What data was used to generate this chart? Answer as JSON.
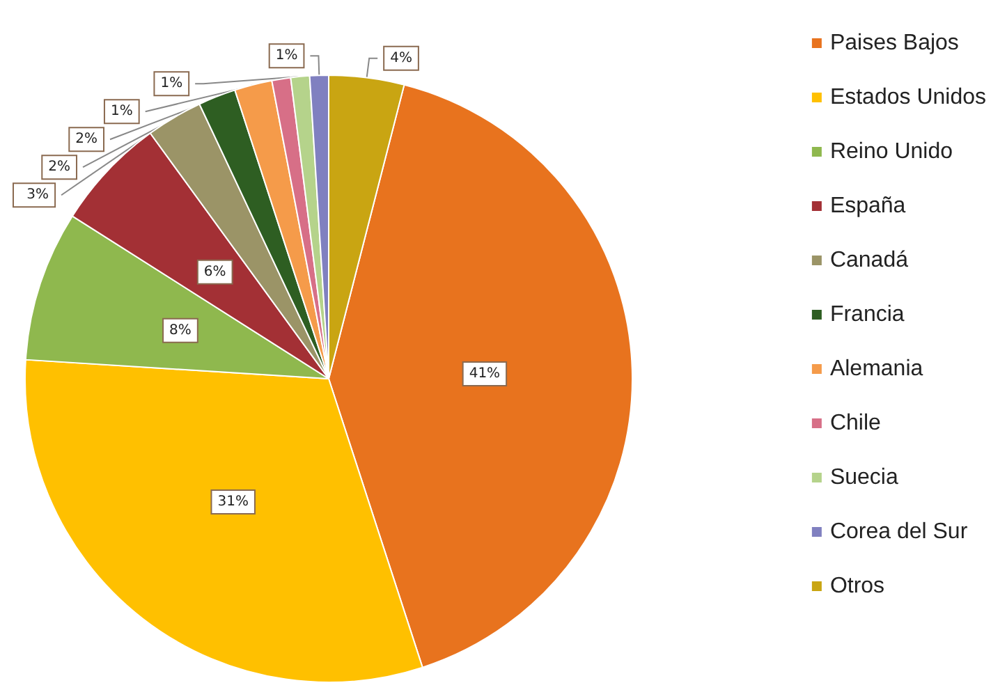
{
  "chart_data": {
    "type": "pie",
    "categories": [
      "Paises Bajos",
      "Estados Unidos",
      "Reino Unido",
      "España",
      "Canadá",
      "Francia",
      "Alemania",
      "Chile",
      "Suecia",
      "Corea del Sur",
      "Otros"
    ],
    "values": [
      41,
      31,
      8,
      6,
      3,
      2,
      2,
      1,
      1,
      1,
      4
    ],
    "value_labels": [
      "41%",
      "31%",
      "8%",
      "6%",
      "3%",
      "2%",
      "2%",
      "1%",
      "1%",
      "1%",
      "4%"
    ],
    "colors": [
      "#e8731e",
      "#ffc000",
      "#8fb84e",
      "#a33035",
      "#9b9467",
      "#2e5e22",
      "#f59b4a",
      "#d76f87",
      "#b5d38b",
      "#8080c0",
      "#c9a512"
    ],
    "legend": "right"
  }
}
